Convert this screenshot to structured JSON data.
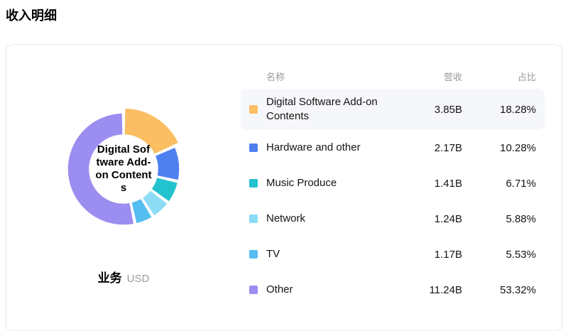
{
  "page": {
    "title": "收入明细"
  },
  "chart": {
    "donut_center_lines": [
      "Digital Sof",
      "tware Add-",
      "on Content",
      "s"
    ],
    "footer": {
      "dimension_label": "业务",
      "unit": "USD"
    }
  },
  "table": {
    "headers": {
      "name": "名称",
      "revenue": "营收",
      "share": "占比"
    }
  },
  "chart_data": {
    "type": "pie",
    "title": "收入明细",
    "unit": "USD",
    "dimension_label": "业务",
    "categories": [
      "Digital Software Add-on Contents",
      "Hardware and other",
      "Music Produce",
      "Network",
      "TV",
      "Other"
    ],
    "values": [
      18.28,
      10.28,
      6.71,
      5.88,
      5.53,
      53.32
    ],
    "revenues": [
      "3.85B",
      "2.17B",
      "1.41B",
      "1.24B",
      "1.17B",
      "11.24B"
    ],
    "colors": [
      "#FBBE63",
      "#4E80F0",
      "#22C3CE",
      "#8CDCF5",
      "#55BDF0",
      "#9B8EF0"
    ],
    "selected_index": 0,
    "inner_radius_ratio": 0.6,
    "legend_position": "right-table",
    "rows": [
      {
        "name": "Digital Software Add-on Contents",
        "revenue": "3.85B",
        "share": "18.28%"
      },
      {
        "name": "Hardware and other",
        "revenue": "2.17B",
        "share": "10.28%"
      },
      {
        "name": "Music Produce",
        "revenue": "1.41B",
        "share": "6.71%"
      },
      {
        "name": "Network",
        "revenue": "1.24B",
        "share": "5.88%"
      },
      {
        "name": "TV",
        "revenue": "1.17B",
        "share": "5.53%"
      },
      {
        "name": "Other",
        "revenue": "11.24B",
        "share": "53.32%"
      }
    ]
  }
}
